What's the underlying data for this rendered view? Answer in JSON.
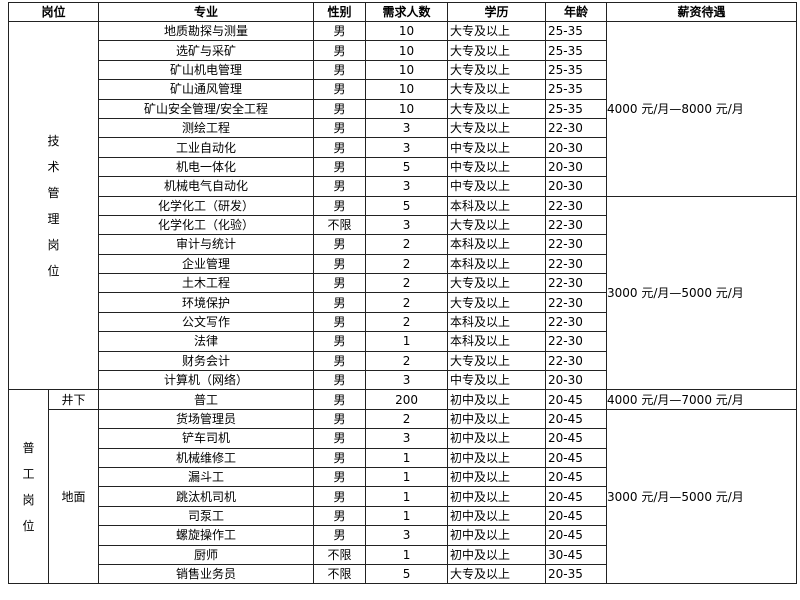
{
  "headers": [
    "岗位",
    "专业",
    "性别",
    "需求人数",
    "学历",
    "年龄",
    "薪资待遇"
  ],
  "groups": [
    {
      "category": "技术管理岗位",
      "subgroups": [
        {
          "name": "",
          "rows": [
            {
              "major": "地质勘探与测量",
              "gender": "男",
              "count": "10",
              "education": "大专及以上",
              "age": "25-35"
            },
            {
              "major": "选矿与采矿",
              "gender": "男",
              "count": "10",
              "education": "大专及以上",
              "age": "25-35"
            },
            {
              "major": "矿山机电管理",
              "gender": "男",
              "count": "10",
              "education": "大专及以上",
              "age": "25-35"
            },
            {
              "major": "矿山通风管理",
              "gender": "男",
              "count": "10",
              "education": "大专及以上",
              "age": "25-35"
            },
            {
              "major": "矿山安全管理/安全工程",
              "gender": "男",
              "count": "10",
              "education": "大专及以上",
              "age": "25-35"
            },
            {
              "major": "测绘工程",
              "gender": "男",
              "count": "3",
              "education": "大专及以上",
              "age": "22-30"
            },
            {
              "major": "工业自动化",
              "gender": "男",
              "count": "3",
              "education": "中专及以上",
              "age": "20-30"
            },
            {
              "major": "机电一体化",
              "gender": "男",
              "count": "5",
              "education": "中专及以上",
              "age": "20-30"
            },
            {
              "major": "机械电气自动化",
              "gender": "男",
              "count": "3",
              "education": "中专及以上",
              "age": "20-30"
            },
            {
              "major": "化学化工（研发）",
              "gender": "男",
              "count": "5",
              "education": "本科及以上",
              "age": "22-30"
            },
            {
              "major": "化学化工（化验）",
              "gender": "不限",
              "count": "3",
              "education": "大专及以上",
              "age": "22-30"
            },
            {
              "major": "审计与统计",
              "gender": "男",
              "count": "2",
              "education": "本科及以上",
              "age": "22-30"
            },
            {
              "major": "企业管理",
              "gender": "男",
              "count": "2",
              "education": "本科及以上",
              "age": "22-30"
            },
            {
              "major": "土木工程",
              "gender": "男",
              "count": "2",
              "education": "大专及以上",
              "age": "22-30"
            },
            {
              "major": "环境保护",
              "gender": "男",
              "count": "2",
              "education": "大专及以上",
              "age": "22-30"
            },
            {
              "major": "公文写作",
              "gender": "男",
              "count": "2",
              "education": "本科及以上",
              "age": "22-30"
            },
            {
              "major": "法律",
              "gender": "男",
              "count": "1",
              "education": "本科及以上",
              "age": "22-30"
            },
            {
              "major": "财务会计",
              "gender": "男",
              "count": "2",
              "education": "大专及以上",
              "age": "22-30"
            },
            {
              "major": "计算机（网络）",
              "gender": "男",
              "count": "3",
              "education": "中专及以上",
              "age": "20-30"
            }
          ]
        }
      ]
    },
    {
      "category": "普工岗位",
      "subgroups": [
        {
          "name": "井下",
          "rows": [
            {
              "major": "普工",
              "gender": "男",
              "count": "200",
              "education": "初中及以上",
              "age": "20-45"
            }
          ]
        },
        {
          "name": "地面",
          "rows": [
            {
              "major": "货场管理员",
              "gender": "男",
              "count": "2",
              "education": "初中及以上",
              "age": "20-45"
            },
            {
              "major": "铲车司机",
              "gender": "男",
              "count": "3",
              "education": "初中及以上",
              "age": "20-45"
            },
            {
              "major": "机械维修工",
              "gender": "男",
              "count": "1",
              "education": "初中及以上",
              "age": "20-45"
            },
            {
              "major": "漏斗工",
              "gender": "男",
              "count": "1",
              "education": "初中及以上",
              "age": "20-45"
            },
            {
              "major": "跳汰机司机",
              "gender": "男",
              "count": "1",
              "education": "初中及以上",
              "age": "20-45"
            },
            {
              "major": "司泵工",
              "gender": "男",
              "count": "1",
              "education": "初中及以上",
              "age": "20-45"
            },
            {
              "major": "螺旋操作工",
              "gender": "男",
              "count": "3",
              "education": "初中及以上",
              "age": "20-45"
            },
            {
              "major": "厨师",
              "gender": "不限",
              "count": "1",
              "education": "初中及以上",
              "age": "30-45"
            },
            {
              "major": "销售业务员",
              "gender": "不限",
              "count": "5",
              "education": "大专及以上",
              "age": "20-35"
            }
          ]
        }
      ]
    }
  ],
  "salaries": [
    {
      "text": "4000 元/月—8000 元/月",
      "rows": 9
    },
    {
      "text": "3000 元/月—5000 元/月",
      "rows": 10
    },
    {
      "text": "4000 元/月—7000 元/月",
      "rows": 1
    },
    {
      "text": "3000 元/月—5000 元/月",
      "rows": 9
    }
  ]
}
